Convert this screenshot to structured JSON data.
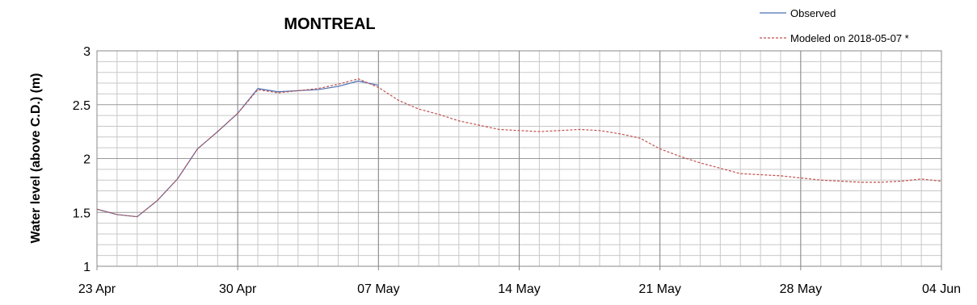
{
  "chart_data": {
    "type": "line",
    "title": "MONTREAL",
    "ylabel": "Water level (above C.D.) (m)",
    "x": [
      "23 Apr",
      "24 Apr",
      "25 Apr",
      "26 Apr",
      "27 Apr",
      "28 Apr",
      "29 Apr",
      "30 Apr",
      "01 May",
      "02 May",
      "03 May",
      "04 May",
      "05 May",
      "06 May",
      "07 May",
      "08 May",
      "09 May",
      "10 May",
      "11 May",
      "12 May",
      "13 May",
      "14 May",
      "15 May",
      "16 May",
      "17 May",
      "18 May",
      "19 May",
      "20 May",
      "21 May",
      "22 May",
      "23 May",
      "24 May",
      "25 May",
      "26 May",
      "27 May",
      "28 May",
      "29 May",
      "30 May",
      "31 May",
      "01 Jun",
      "02 Jun",
      "03 Jun",
      "04 Jun"
    ],
    "xticks": [
      "23 Apr",
      "30 Apr",
      "07 May",
      "14 May",
      "21 May",
      "28 May",
      "04 Jun"
    ],
    "ylim": [
      1,
      3
    ],
    "yticks": [
      1,
      1.5,
      2,
      2.5,
      3
    ],
    "grid": true,
    "minor_grid": true,
    "legend": "top-right",
    "series": [
      {
        "name": "Observed",
        "color": "#4a6fb5",
        "style": "solid",
        "values": [
          1.53,
          1.48,
          1.46,
          1.61,
          1.81,
          2.09,
          2.25,
          2.42,
          2.65,
          2.62,
          2.63,
          2.64,
          2.67,
          2.72,
          2.68,
          null,
          null,
          null,
          null,
          null,
          null,
          null,
          null,
          null,
          null,
          null,
          null,
          null,
          null,
          null,
          null,
          null,
          null,
          null,
          null,
          null,
          null,
          null,
          null,
          null,
          null,
          null,
          null
        ]
      },
      {
        "name": "Modeled on 2018-05-07 *",
        "color": "#c0504d",
        "style": "dashed",
        "values": [
          1.53,
          1.48,
          1.46,
          1.61,
          1.81,
          2.09,
          2.25,
          2.42,
          2.64,
          2.61,
          2.63,
          2.65,
          2.69,
          2.74,
          2.66,
          2.54,
          2.46,
          2.41,
          2.35,
          2.31,
          2.27,
          2.26,
          2.25,
          2.26,
          2.27,
          2.26,
          2.23,
          2.19,
          2.09,
          2.02,
          1.96,
          1.91,
          1.86,
          1.85,
          1.84,
          1.82,
          1.8,
          1.79,
          1.78,
          1.78,
          1.79,
          1.81,
          1.79
        ]
      }
    ]
  }
}
